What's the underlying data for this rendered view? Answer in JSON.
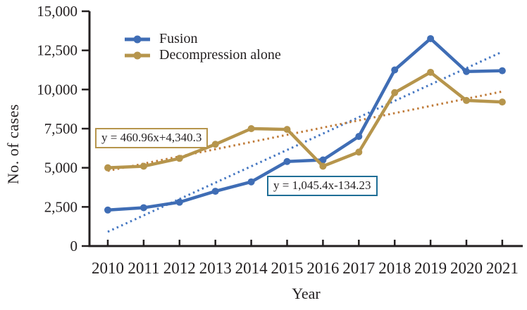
{
  "figure": {
    "background": "#ffffff",
    "text_color": "#231f20",
    "axis_color": "#231f20"
  },
  "chart_data": {
    "type": "line",
    "title": "",
    "xlabel": "Year",
    "ylabel": "No. of cases",
    "x": [
      2010,
      2011,
      2012,
      2013,
      2014,
      2015,
      2016,
      2017,
      2018,
      2019,
      2020,
      2021
    ],
    "ylim": [
      0,
      15000
    ],
    "ytick_values": [
      0,
      2500,
      5000,
      7500,
      10000,
      12500,
      15000
    ],
    "ytick_labels": [
      "0",
      "2,500",
      "5,000",
      "7,500",
      "10,000",
      "12,500",
      "15,000"
    ],
    "grid": false,
    "legend_position": "upper-left-inside",
    "series": [
      {
        "name": "Fusion",
        "color": "#3f6db5",
        "values": [
          2300,
          2450,
          2800,
          3500,
          4100,
          5400,
          5500,
          7000,
          11250,
          13250,
          11150,
          11200
        ],
        "trend": {
          "equation_label": "y = 1,045.4x-134.23",
          "slope": 1045.4,
          "intercept": -134.23,
          "x_origin_year": 2010,
          "x_origin_index": 1,
          "line_color": "#4577c2",
          "box_border_color": "#1f6e96"
        }
      },
      {
        "name": "Decompression alone",
        "color": "#b6954c",
        "values": [
          5000,
          5100,
          5600,
          6500,
          7500,
          7450,
          5100,
          6000,
          9800,
          11100,
          9300,
          9200
        ],
        "trend": {
          "equation_label": "y = 460.96x+4,340.3",
          "slope": 460.96,
          "intercept": 4340.3,
          "x_origin_year": 2010,
          "x_origin_index": 1,
          "line_color": "#c07c3a",
          "box_border_color": "#b6954c"
        }
      }
    ]
  }
}
